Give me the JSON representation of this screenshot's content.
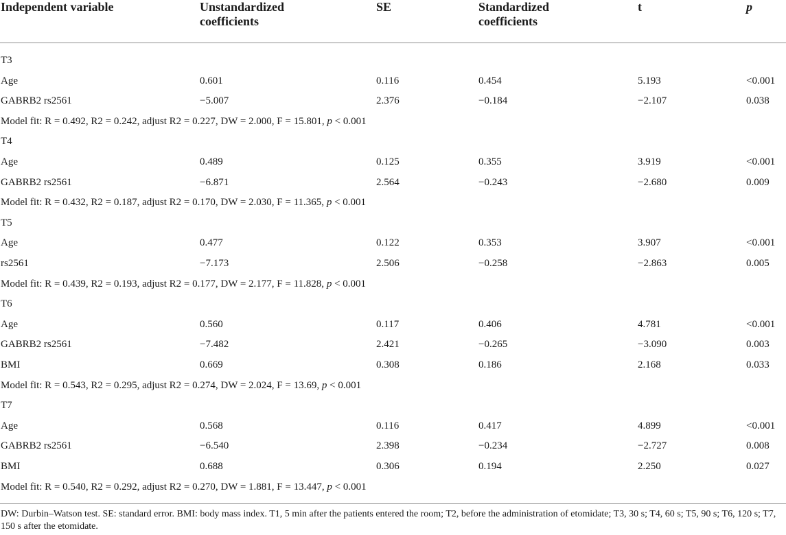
{
  "headers": {
    "independent_variable": "Independent variable",
    "unstandardized": "Unstandardized coefficients",
    "se": "SE",
    "standardized": "Standardized coefficients",
    "t": "t",
    "p": "p"
  },
  "rows": [
    {
      "kind": "section",
      "text": "T3"
    },
    {
      "kind": "data",
      "cells": [
        "Age",
        "0.601",
        "0.116",
        "0.454",
        "5.193",
        "<0.001"
      ]
    },
    {
      "kind": "data",
      "cells": [
        "GABRB2 rs2561",
        "−5.007",
        "2.376",
        "−0.184",
        "−2.107",
        "0.038"
      ]
    },
    {
      "kind": "fit",
      "text": "Model fit: R = 0.492, R2 = 0.242, adjust R2 = 0.227, DW = 2.000, F = 15.801, p < 0.001"
    },
    {
      "kind": "section",
      "text": "T4"
    },
    {
      "kind": "data",
      "cells": [
        "Age",
        "0.489",
        "0.125",
        "0.355",
        "3.919",
        "<0.001"
      ]
    },
    {
      "kind": "data",
      "cells": [
        "GABRB2 rs2561",
        "−6.871",
        "2.564",
        "−0.243",
        "−2.680",
        "0.009"
      ]
    },
    {
      "kind": "fit",
      "text": "Model fit: R = 0.432, R2 = 0.187, adjust R2 = 0.170, DW = 2.030, F = 11.365, p < 0.001"
    },
    {
      "kind": "section",
      "text": "T5"
    },
    {
      "kind": "data",
      "cells": [
        "Age",
        "0.477",
        "0.122",
        "0.353",
        "3.907",
        "<0.001"
      ]
    },
    {
      "kind": "data",
      "cells": [
        "rs2561",
        "−7.173",
        "2.506",
        "−0.258",
        "−2.863",
        "0.005"
      ]
    },
    {
      "kind": "fit",
      "text": "Model fit: R = 0.439, R2 = 0.193, adjust R2 = 0.177, DW = 2.177, F = 11.828, p < 0.001"
    },
    {
      "kind": "section",
      "text": "T6"
    },
    {
      "kind": "data",
      "cells": [
        "Age",
        "0.560",
        "0.117",
        "0.406",
        "4.781",
        "<0.001"
      ]
    },
    {
      "kind": "data",
      "cells": [
        "GABRB2 rs2561",
        "−7.482",
        "2.421",
        "−0.265",
        "−3.090",
        "0.003"
      ]
    },
    {
      "kind": "data",
      "cells": [
        "BMI",
        "0.669",
        "0.308",
        "0.186",
        "2.168",
        "0.033"
      ]
    },
    {
      "kind": "fit",
      "text": "Model fit: R = 0.543, R2 = 0.295, adjust R2 = 0.274, DW = 2.024, F = 13.69, p < 0.001"
    },
    {
      "kind": "section",
      "text": "T7"
    },
    {
      "kind": "data",
      "cells": [
        "Age",
        "0.568",
        "0.116",
        "0.417",
        "4.899",
        "<0.001"
      ]
    },
    {
      "kind": "data",
      "cells": [
        "GABRB2 rs2561",
        "−6.540",
        "2.398",
        "−0.234",
        "−2.727",
        "0.008"
      ]
    },
    {
      "kind": "data",
      "cells": [
        "BMI",
        "0.688",
        "0.306",
        "0.194",
        "2.250",
        "0.027"
      ]
    },
    {
      "kind": "fit",
      "text": "Model fit: R = 0.540, R2 = 0.292, adjust R2 = 0.270, DW = 1.881, F = 13.447, p < 0.001"
    }
  ],
  "footnote": "DW: Durbin–Watson test. SE: standard error. BMI: body mass index. T1, 5 min after the patients entered the room; T2, before the administration of etomidate; T3, 30 s; T4, 60 s; T5, 90 s; T6, 120 s; T7, 150 s after the etomidate."
}
